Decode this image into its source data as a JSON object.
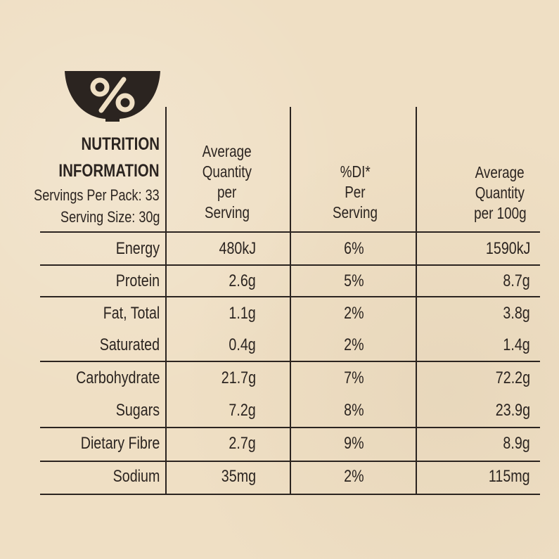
{
  "header": {
    "icon": "percent-bowl-icon",
    "title_line1": "NUTRITION",
    "title_line2": "INFORMATION",
    "servings_per_pack": "Servings Per Pack: 33",
    "serving_size": "Serving Size: 30g",
    "col_per_serving": [
      "Average",
      "Quantity",
      "per",
      "Serving"
    ],
    "col_di": [
      "%DI*",
      "Per",
      "Serving"
    ],
    "col_per_100g": [
      "Average",
      "Quantity",
      "per 100g"
    ]
  },
  "rows": [
    {
      "label": "Energy",
      "per_serving": "480kJ",
      "di": "6%",
      "per_100g": "1590kJ"
    },
    {
      "label": "Protein",
      "per_serving": "2.6g",
      "di": "5%",
      "per_100g": "8.7g"
    },
    {
      "label": "Fat, Total",
      "per_serving": "1.1g",
      "di": "2%",
      "per_100g": "3.8g"
    },
    {
      "label": "Saturated",
      "per_serving": "0.4g",
      "di": "2%",
      "per_100g": "1.4g"
    },
    {
      "label": "Carbohydrate",
      "per_serving": "21.7g",
      "di": "7%",
      "per_100g": "72.2g"
    },
    {
      "label": "Sugars",
      "per_serving": "7.2g",
      "di": "8%",
      "per_100g": "23.9g"
    },
    {
      "label": "Dietary Fibre",
      "per_serving": "2.7g",
      "di": "9%",
      "per_100g": "8.9g"
    },
    {
      "label": "Sodium",
      "per_serving": "35mg",
      "di": "2%",
      "per_100g": "115mg"
    }
  ],
  "colors": {
    "ink": "#2b2420",
    "paper": "#efdfc4"
  }
}
